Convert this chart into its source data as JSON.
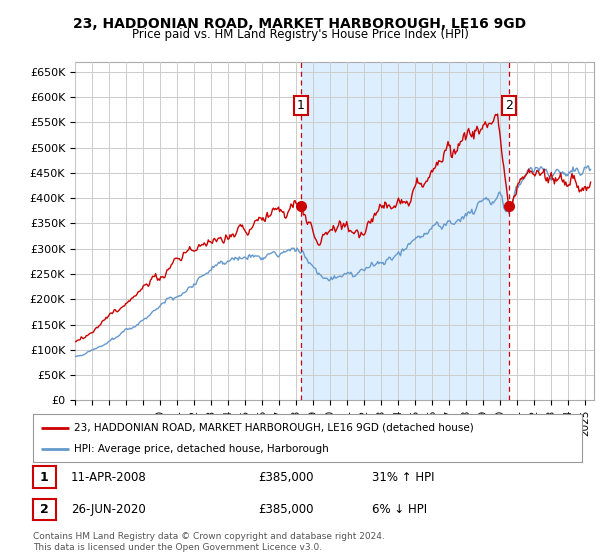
{
  "title": "23, HADDONIAN ROAD, MARKET HARBOROUGH, LE16 9GD",
  "subtitle": "Price paid vs. HM Land Registry's House Price Index (HPI)",
  "ylabel_ticks": [
    "£0",
    "£50K",
    "£100K",
    "£150K",
    "£200K",
    "£250K",
    "£300K",
    "£350K",
    "£400K",
    "£450K",
    "£500K",
    "£550K",
    "£600K",
    "£650K"
  ],
  "ytick_values": [
    0,
    50000,
    100000,
    150000,
    200000,
    250000,
    300000,
    350000,
    400000,
    450000,
    500000,
    550000,
    600000,
    650000
  ],
  "ylim": [
    0,
    670000
  ],
  "xlim_start": 1995.0,
  "xlim_end": 2025.5,
  "purchase1_x": 2008.27,
  "purchase1_y": 385000,
  "purchase2_x": 2020.48,
  "purchase2_y": 385000,
  "purchase1_label": "1",
  "purchase1_date": "11-APR-2008",
  "purchase1_price": "£385,000",
  "purchase1_hpi": "31% ↑ HPI",
  "purchase2_label": "2",
  "purchase2_date": "26-JUN-2020",
  "purchase2_price": "£385,000",
  "purchase2_hpi": "6% ↓ HPI",
  "legend_line1": "23, HADDONIAN ROAD, MARKET HARBOROUGH, LE16 9GD (detached house)",
  "legend_line2": "HPI: Average price, detached house, Harborough",
  "footer": "Contains HM Land Registry data © Crown copyright and database right 2024.\nThis data is licensed under the Open Government Licence v3.0.",
  "property_color": "#cc0000",
  "hpi_color": "#6699cc",
  "fill_color": "#ddeeff",
  "grid_color": "#cccccc",
  "background_color": "#ffffff",
  "vline_color": "#cc0000"
}
